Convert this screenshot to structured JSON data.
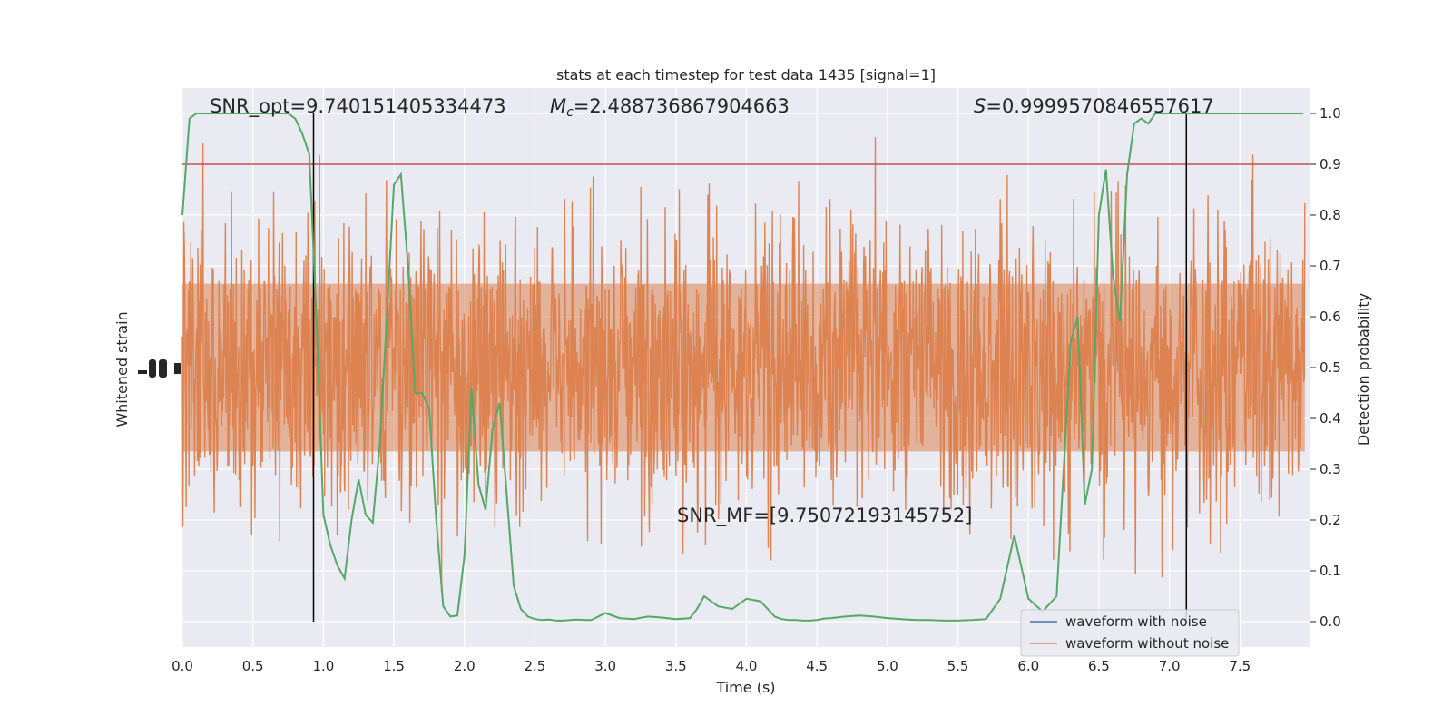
{
  "chart_data": {
    "type": "line",
    "title": "stats at each timestep for test data 1435 [signal=1]",
    "xlabel": "Time (s)",
    "ylabel_left": "Whitened strain",
    "ylabel_right": "Detection probability",
    "xlim": [
      0.0,
      8.0
    ],
    "xticks": [
      "0.0",
      "0.5",
      "1.0",
      "1.5",
      "2.0",
      "2.5",
      "3.0",
      "3.5",
      "4.0",
      "4.5",
      "5.0",
      "5.5",
      "6.0",
      "6.5",
      "7.0",
      "7.5"
    ],
    "ylim_right": [
      -0.05,
      1.05
    ],
    "yticks_right": [
      "0.0",
      "0.1",
      "0.2",
      "0.3",
      "0.4",
      "0.5",
      "0.6",
      "0.7",
      "0.8",
      "0.9",
      "1.0"
    ],
    "threshold": 0.9,
    "vlines": [
      0.93,
      7.12
    ],
    "annotations": {
      "snr_opt": "SNR_opt=9.740151405334473",
      "mc_sym": "M",
      "mc_sub": "c",
      "mc_val": "=2.488736867904663",
      "s_sym": "S",
      "s_val": "=0.9999570846557617",
      "snr_mf": "SNR_MF=[9.75072193145752]"
    },
    "legend": {
      "position": "lower-right",
      "entries": [
        "waveform with noise",
        "waveform without noise"
      ]
    },
    "series": [
      {
        "name": "Detection probability",
        "x": [
          0.0,
          0.05,
          0.1,
          0.15,
          0.2,
          0.25,
          0.3,
          0.35,
          0.4,
          0.45,
          0.5,
          0.55,
          0.6,
          0.65,
          0.7,
          0.75,
          0.8,
          0.85,
          0.9,
          0.95,
          1.0,
          1.05,
          1.1,
          1.15,
          1.2,
          1.25,
          1.3,
          1.35,
          1.4,
          1.45,
          1.5,
          1.55,
          1.6,
          1.65,
          1.7,
          1.75,
          1.8,
          1.85,
          1.9,
          1.95,
          2.0,
          2.05,
          2.1,
          2.15,
          2.2,
          2.25,
          2.3,
          2.35,
          2.4,
          2.45,
          2.5,
          2.55,
          2.6,
          2.65,
          2.7,
          2.75,
          2.8,
          2.85,
          2.9,
          3.0,
          3.1,
          3.2,
          3.3,
          3.4,
          3.5,
          3.6,
          3.65,
          3.7,
          3.8,
          3.9,
          4.0,
          4.1,
          4.2,
          4.25,
          4.3,
          4.35,
          4.4,
          4.45,
          4.5,
          4.55,
          4.6,
          4.7,
          4.8,
          4.9,
          5.0,
          5.1,
          5.2,
          5.3,
          5.4,
          5.5,
          5.6,
          5.7,
          5.8,
          5.9,
          6.0,
          6.1,
          6.2,
          6.3,
          6.35,
          6.4,
          6.45,
          6.5,
          6.55,
          6.6,
          6.65,
          6.7,
          6.75,
          6.8,
          6.85,
          6.9,
          6.95,
          7.0,
          7.05,
          7.1,
          7.15,
          7.2,
          7.25,
          7.3,
          7.35,
          7.4,
          7.45,
          7.5,
          7.6,
          7.7,
          7.8,
          7.9,
          7.95
        ],
        "values": [
          0.8,
          0.99,
          1.0,
          1.0,
          1.0,
          1.0,
          1.0,
          1.0,
          1.0,
          1.0,
          1.0,
          1.0,
          1.0,
          1.0,
          1.0,
          1.0,
          0.99,
          0.96,
          0.92,
          0.6,
          0.21,
          0.15,
          0.11,
          0.085,
          0.2,
          0.28,
          0.21,
          0.195,
          0.35,
          0.6,
          0.86,
          0.88,
          0.7,
          0.45,
          0.45,
          0.42,
          0.2,
          0.03,
          0.01,
          0.012,
          0.13,
          0.46,
          0.27,
          0.22,
          0.38,
          0.43,
          0.25,
          0.07,
          0.025,
          0.01,
          0.005,
          0.003,
          0.004,
          0.002,
          0.002,
          0.003,
          0.004,
          0.003,
          0.003,
          0.017,
          0.007,
          0.005,
          0.01,
          0.008,
          0.005,
          0.007,
          0.025,
          0.05,
          0.03,
          0.025,
          0.045,
          0.04,
          0.01,
          0.005,
          0.003,
          0.003,
          0.002,
          0.002,
          0.003,
          0.006,
          0.007,
          0.01,
          0.012,
          0.01,
          0.007,
          0.005,
          0.003,
          0.003,
          0.002,
          0.002,
          0.003,
          0.005,
          0.045,
          0.17,
          0.045,
          0.02,
          0.05,
          0.55,
          0.6,
          0.23,
          0.3,
          0.8,
          0.89,
          0.68,
          0.59,
          0.88,
          0.98,
          0.99,
          0.98,
          1.0,
          1.0,
          1.0,
          1.0,
          1.0,
          1.0,
          1.0,
          1.0,
          1.0,
          1.0,
          1.0,
          1.0,
          1.0,
          1.0,
          1.0,
          1.0,
          1.0,
          1.0
        ]
      }
    ]
  },
  "colors": {
    "background": "#eaeaf2",
    "grid": "#ffffff",
    "noise_waveform": "#4c72b0",
    "clean_waveform": "#dd8452",
    "probability": "#55a868",
    "threshold": "#c44e52",
    "vline": "#000000"
  }
}
